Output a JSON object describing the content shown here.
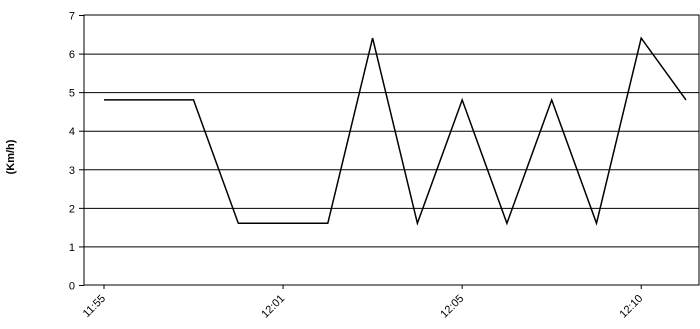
{
  "chart_data": {
    "type": "line",
    "title": "",
    "xlabel": "",
    "ylabel": "(Km/h)",
    "ylim": [
      0,
      7
    ],
    "yticks": [
      0,
      1,
      2,
      3,
      4,
      5,
      6,
      7
    ],
    "xticks": [
      {
        "label": "11:55",
        "x": 0
      },
      {
        "label": "12:01",
        "x": 4
      },
      {
        "label": "12:05",
        "x": 8
      },
      {
        "label": "12:10",
        "x": 12
      }
    ],
    "xlim": [
      -0.5,
      13
    ],
    "grid": "horizontal",
    "series": [
      {
        "color": "#000000",
        "points": [
          [
            0,
            4.8
          ],
          [
            2,
            4.8
          ],
          [
            3,
            1.6
          ],
          [
            5,
            1.6
          ],
          [
            6,
            6.4
          ],
          [
            7,
            1.6
          ],
          [
            8,
            4.8
          ],
          [
            9,
            1.6
          ],
          [
            10,
            4.8
          ],
          [
            11,
            1.6
          ],
          [
            12,
            6.4
          ],
          [
            13,
            4.8
          ]
        ]
      }
    ]
  }
}
